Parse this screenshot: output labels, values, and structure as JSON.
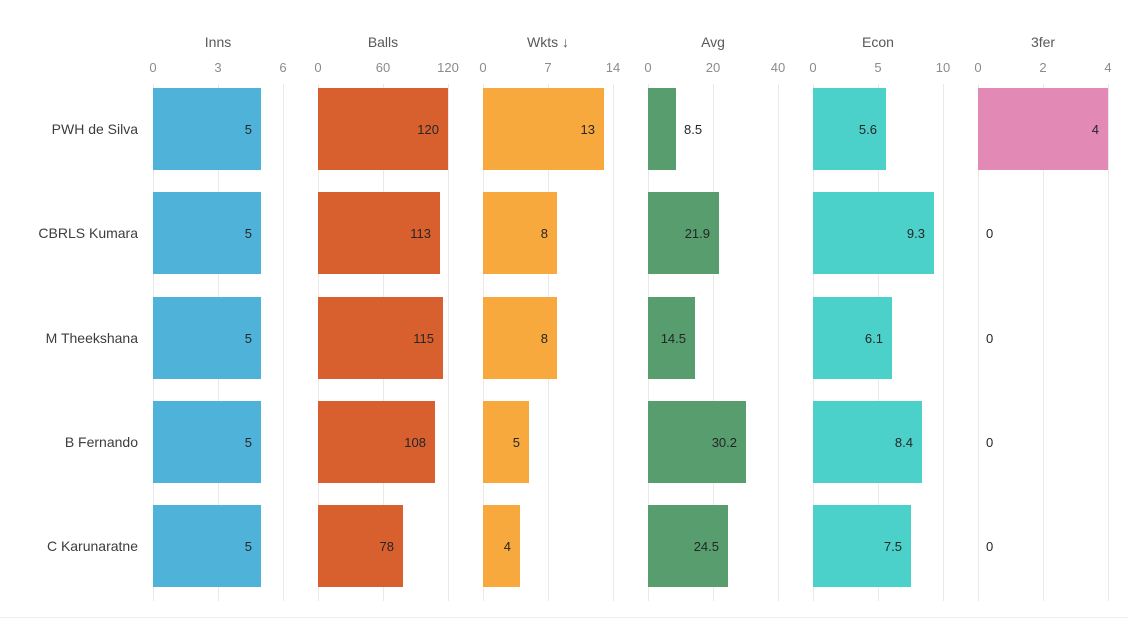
{
  "chart_data": {
    "type": "bar",
    "orientation": "horizontal",
    "layout": "trellis-small-multiples",
    "grid": true,
    "background": "#ffffff",
    "sorted_by": {
      "column": "Wkts",
      "order": "descending",
      "indicator": "↓"
    },
    "rows": [
      "PWH de Silva",
      "CBRLS Kumara",
      "M Theekshana",
      "B Fernando",
      "C Karunaratne"
    ],
    "columns": [
      {
        "label": "Inns",
        "ticks": [
          "0",
          "3",
          "6"
        ],
        "axis_min": 0,
        "axis_max": 6,
        "color": "#4FB3D9",
        "values": [
          5,
          5,
          5,
          5,
          5
        ],
        "labels": [
          "5",
          "5",
          "5",
          "5",
          "5"
        ]
      },
      {
        "label": "Balls",
        "ticks": [
          "0",
          "60",
          "120"
        ],
        "axis_min": 0,
        "axis_max": 120,
        "color": "#D7602E",
        "values": [
          120,
          113,
          115,
          108,
          78
        ],
        "labels": [
          "120",
          "113",
          "115",
          "108",
          "78"
        ]
      },
      {
        "label": "Wkts ↓",
        "ticks": [
          "0",
          "7",
          "14"
        ],
        "axis_min": 0,
        "axis_max": 14,
        "color": "#F8A93D",
        "values": [
          13,
          8,
          8,
          5,
          4
        ],
        "labels": [
          "13",
          "8",
          "8",
          "5",
          "4"
        ]
      },
      {
        "label": "Avg",
        "ticks": [
          "0",
          "20",
          "40"
        ],
        "axis_min": 0,
        "axis_max": 40,
        "color": "#579D6E",
        "values": [
          8.5,
          21.9,
          14.5,
          30.2,
          24.5
        ],
        "labels": [
          "8.5",
          "21.9",
          "14.5",
          "30.2",
          "24.5"
        ]
      },
      {
        "label": "Econ",
        "ticks": [
          "0",
          "5",
          "10"
        ],
        "axis_min": 0,
        "axis_max": 10,
        "color": "#4CD0CA",
        "values": [
          5.6,
          9.3,
          6.1,
          8.4,
          7.5
        ],
        "labels": [
          "5.6",
          "9.3",
          "6.1",
          "8.4",
          "7.5"
        ]
      },
      {
        "label": "3fer",
        "ticks": [
          "0",
          "2",
          "4"
        ],
        "axis_min": 0,
        "axis_max": 4,
        "color": "#E28AB5",
        "values": [
          4,
          0,
          0,
          0,
          0
        ],
        "labels": [
          "4",
          "0",
          "0",
          "0",
          "0"
        ]
      }
    ]
  }
}
